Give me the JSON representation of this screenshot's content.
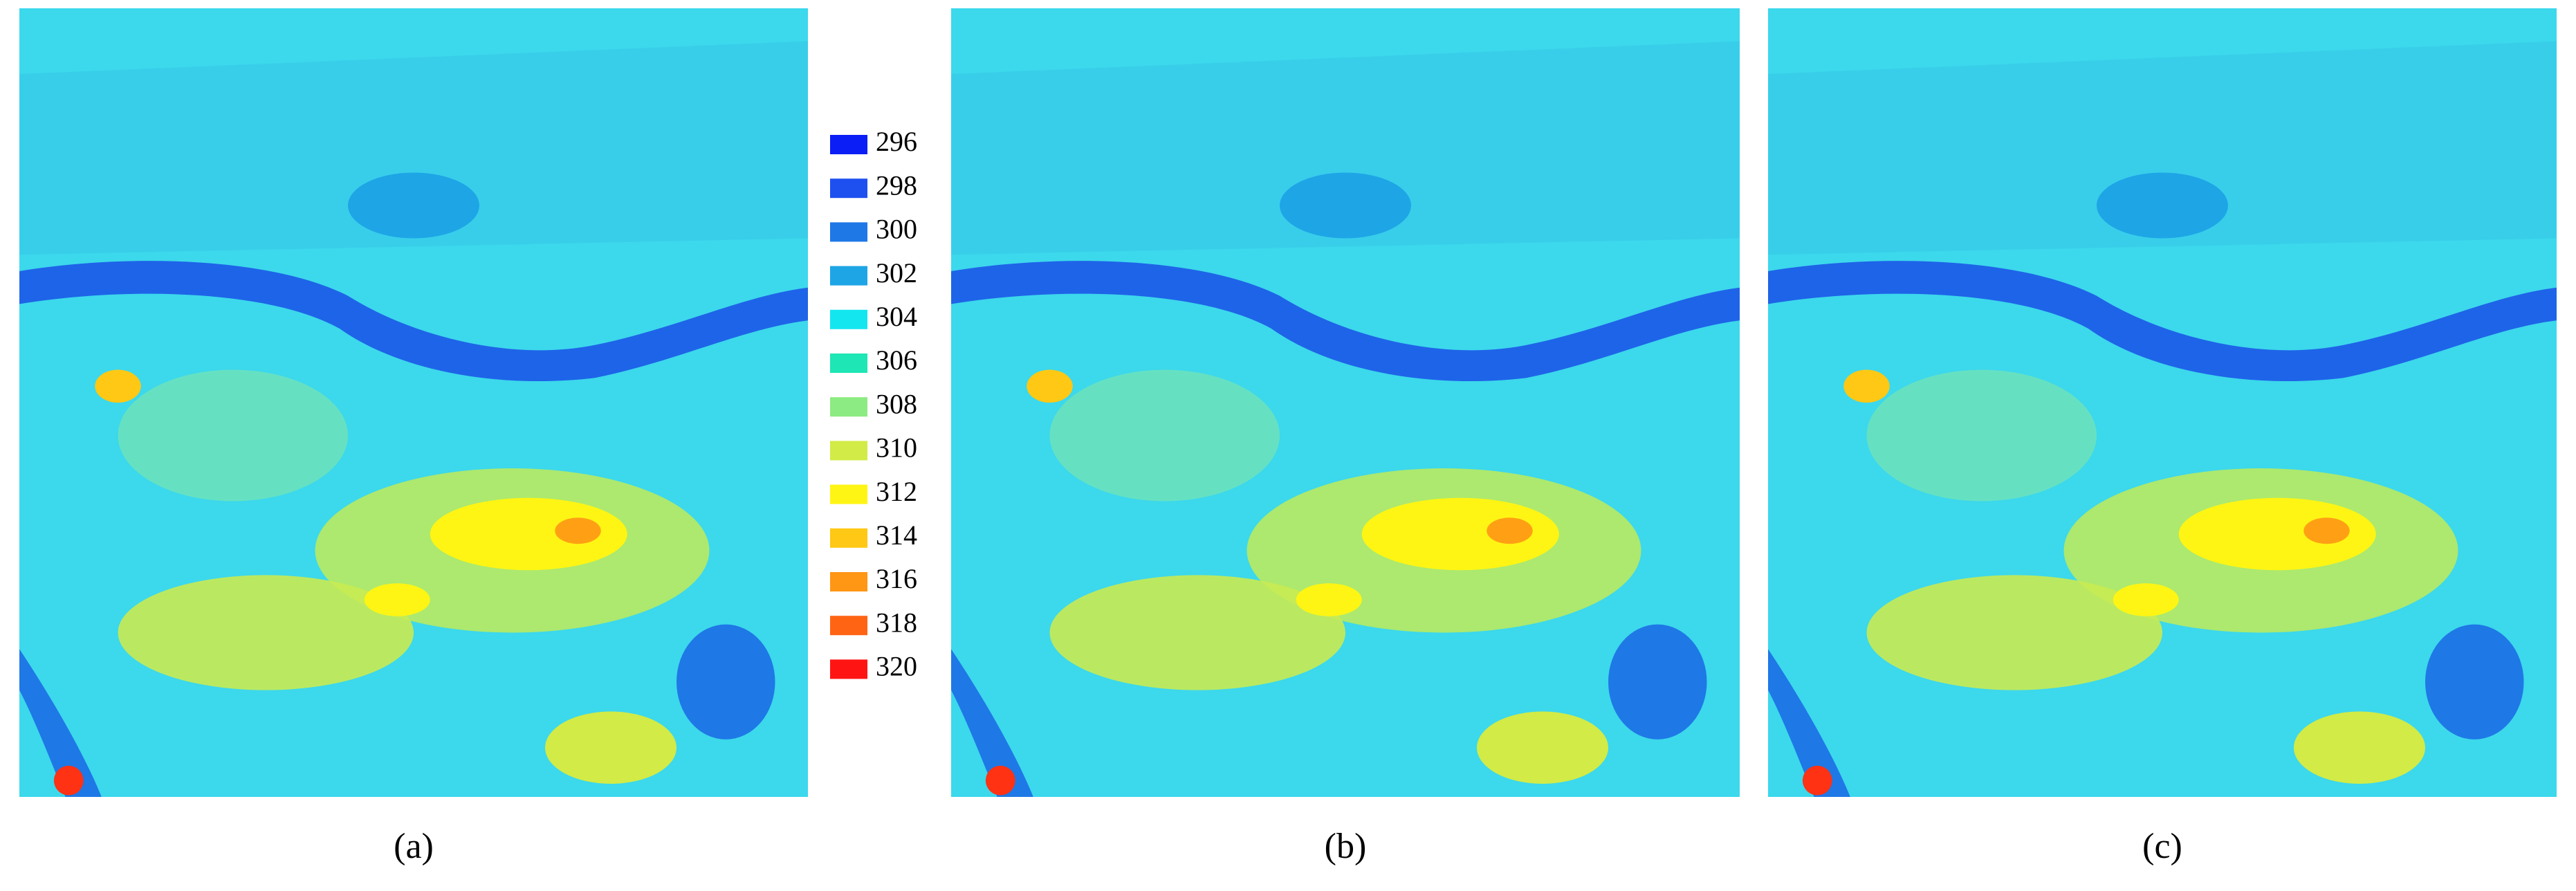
{
  "legend": {
    "items": [
      {
        "label": "296",
        "color": "#0a1ef5"
      },
      {
        "label": "298",
        "color": "#1e50f0"
      },
      {
        "label": "300",
        "color": "#1e78e6"
      },
      {
        "label": "302",
        "color": "#1ea5e6"
      },
      {
        "label": "304",
        "color": "#14e6f0"
      },
      {
        "label": "306",
        "color": "#1ee6b4"
      },
      {
        "label": "308",
        "color": "#8ceb82"
      },
      {
        "label": "310",
        "color": "#d2eb46"
      },
      {
        "label": "312",
        "color": "#fff514"
      },
      {
        "label": "314",
        "color": "#ffc814"
      },
      {
        "label": "316",
        "color": "#ff9614"
      },
      {
        "label": "318",
        "color": "#ff6414"
      },
      {
        "label": "320",
        "color": "#ff1414"
      }
    ]
  },
  "panels": [
    {
      "label": "(a)"
    },
    {
      "label": "(b)"
    },
    {
      "label": "(c)"
    }
  ]
}
